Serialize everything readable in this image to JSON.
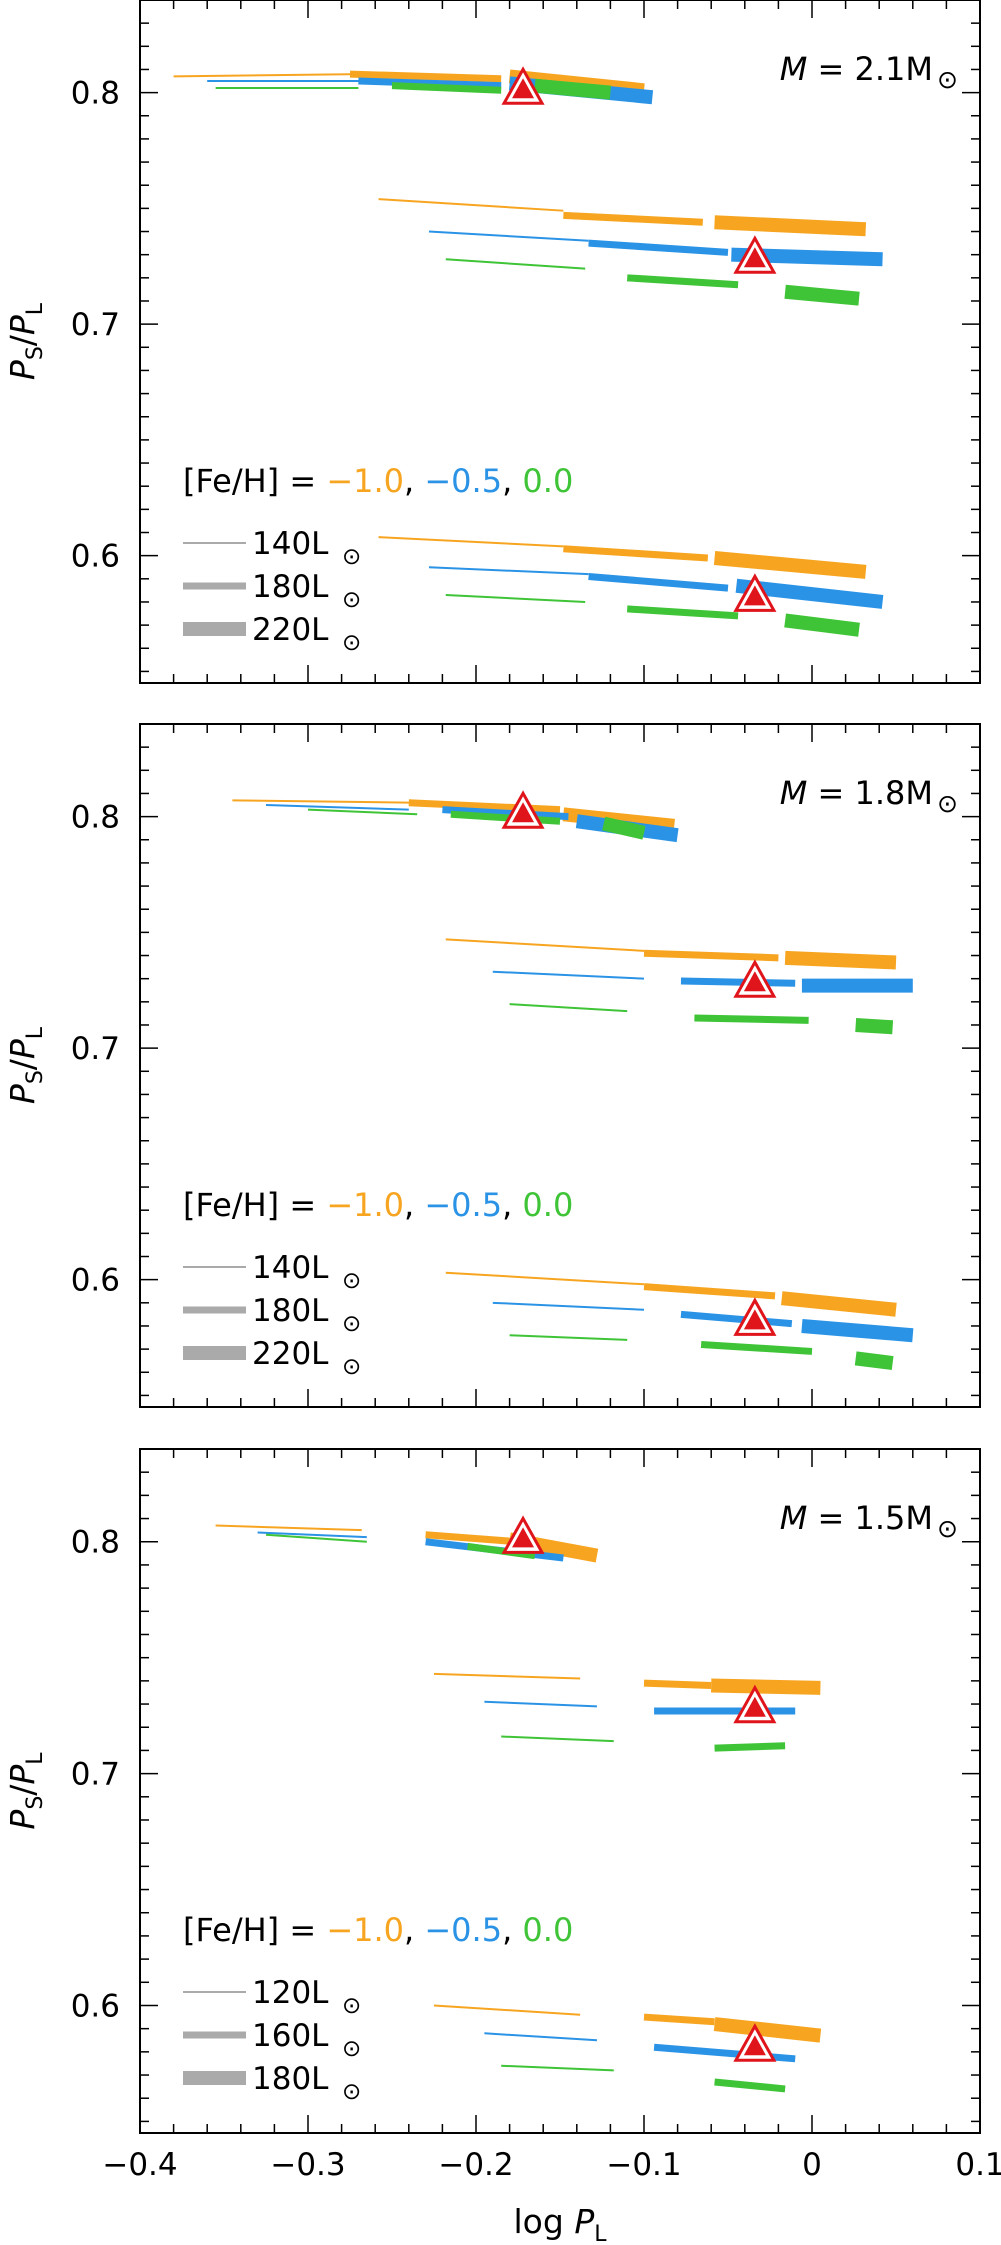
{
  "colors": {
    "metal_poor": "#f7a520",
    "metal_mid": "#2b93e6",
    "metal_solar": "#3fc437",
    "observed_fill": "#e0141b",
    "observed_edge": "#e0141b",
    "legend_gray": "#aaaaaa",
    "axis": "#000000"
  },
  "x_axis": {
    "label_prefix": "log ",
    "label_var": "P",
    "label_sub": "L",
    "ticks": [
      -0.4,
      -0.3,
      -0.2,
      -0.1,
      0,
      0.1
    ],
    "tick_labels": [
      "−0.4",
      "−0.3",
      "−0.2",
      "−0.1",
      "0",
      "0.1"
    ]
  },
  "y_axis": {
    "label_num": "P",
    "label_num_sub": "S",
    "label_den": "P",
    "label_den_sub": "L",
    "ticks": [
      0.6,
      0.7,
      0.8
    ],
    "tick_labels": [
      "0.6",
      "0.7",
      "0.8"
    ]
  },
  "legend_metallicity": {
    "prefix": "[Fe/H] = ",
    "values": [
      "−1.0",
      "−0.5",
      "0.0"
    ],
    "separators": [
      ", ",
      ", "
    ]
  },
  "chart_data": [
    {
      "type": "line",
      "panel": "top",
      "title_prefix": "M",
      "title_value": " = 2.1M",
      "title_symbol": "⊙",
      "xlim": [
        -0.4,
        0.1
      ],
      "ylim": [
        0.545,
        0.84
      ],
      "legend_luminosities": [
        "140L",
        "180L",
        "220L"
      ],
      "legend_symbol": "⊙",
      "observed_points": [
        {
          "x": -0.172,
          "y": 0.801
        },
        {
          "x": -0.034,
          "y": 0.728
        },
        {
          "x": -0.034,
          "y": 0.582
        }
      ],
      "series": [
        {
          "metal": "metal_poor",
          "lum": 1,
          "x": [
            -0.38,
            -0.27
          ],
          "y": [
            0.807,
            0.808
          ]
        },
        {
          "metal": "metal_poor",
          "lum": 2,
          "x": [
            -0.275,
            -0.185
          ],
          "y": [
            0.808,
            0.806
          ]
        },
        {
          "metal": "metal_poor",
          "lum": 3,
          "x": [
            -0.18,
            -0.1
          ],
          "y": [
            0.807,
            0.801
          ]
        },
        {
          "metal": "metal_mid",
          "lum": 1,
          "x": [
            -0.36,
            -0.265
          ],
          "y": [
            0.805,
            0.805
          ]
        },
        {
          "metal": "metal_mid",
          "lum": 2,
          "x": [
            -0.27,
            -0.185
          ],
          "y": [
            0.805,
            0.803
          ]
        },
        {
          "metal": "metal_mid",
          "lum": 3,
          "x": [
            -0.18,
            -0.095
          ],
          "y": [
            0.804,
            0.798
          ]
        },
        {
          "metal": "metal_solar",
          "lum": 1,
          "x": [
            -0.355,
            -0.27
          ],
          "y": [
            0.802,
            0.802
          ]
        },
        {
          "metal": "metal_solar",
          "lum": 2,
          "x": [
            -0.25,
            -0.185
          ],
          "y": [
            0.803,
            0.801
          ]
        },
        {
          "metal": "metal_solar",
          "lum": 3,
          "x": [
            -0.165,
            -0.12
          ],
          "y": [
            0.803,
            0.8
          ]
        },
        {
          "metal": "metal_poor",
          "lum": 1,
          "x": [
            -0.258,
            -0.148
          ],
          "y": [
            0.754,
            0.749
          ]
        },
        {
          "metal": "metal_poor",
          "lum": 2,
          "x": [
            -0.148,
            -0.065
          ],
          "y": [
            0.747,
            0.744
          ]
        },
        {
          "metal": "metal_poor",
          "lum": 3,
          "x": [
            -0.058,
            0.032
          ],
          "y": [
            0.744,
            0.741
          ]
        },
        {
          "metal": "metal_mid",
          "lum": 1,
          "x": [
            -0.228,
            -0.133
          ],
          "y": [
            0.74,
            0.736
          ]
        },
        {
          "metal": "metal_mid",
          "lum": 2,
          "x": [
            -0.133,
            -0.05
          ],
          "y": [
            0.735,
            0.731
          ]
        },
        {
          "metal": "metal_mid",
          "lum": 3,
          "x": [
            -0.048,
            0.042
          ],
          "y": [
            0.73,
            0.728
          ]
        },
        {
          "metal": "metal_solar",
          "lum": 1,
          "x": [
            -0.218,
            -0.135
          ],
          "y": [
            0.728,
            0.724
          ]
        },
        {
          "metal": "metal_solar",
          "lum": 2,
          "x": [
            -0.11,
            -0.044
          ],
          "y": [
            0.72,
            0.717
          ]
        },
        {
          "metal": "metal_solar",
          "lum": 3,
          "x": [
            -0.016,
            0.028
          ],
          "y": [
            0.714,
            0.711
          ]
        },
        {
          "metal": "metal_poor",
          "lum": 1,
          "x": [
            -0.258,
            -0.148
          ],
          "y": [
            0.608,
            0.604
          ]
        },
        {
          "metal": "metal_poor",
          "lum": 2,
          "x": [
            -0.148,
            -0.062
          ],
          "y": [
            0.603,
            0.599
          ]
        },
        {
          "metal": "metal_poor",
          "lum": 3,
          "x": [
            -0.058,
            0.032
          ],
          "y": [
            0.599,
            0.593
          ]
        },
        {
          "metal": "metal_mid",
          "lum": 1,
          "x": [
            -0.228,
            -0.133
          ],
          "y": [
            0.595,
            0.592
          ]
        },
        {
          "metal": "metal_mid",
          "lum": 2,
          "x": [
            -0.133,
            -0.05
          ],
          "y": [
            0.591,
            0.586
          ]
        },
        {
          "metal": "metal_mid",
          "lum": 3,
          "x": [
            -0.045,
            0.042
          ],
          "y": [
            0.587,
            0.58
          ]
        },
        {
          "metal": "metal_solar",
          "lum": 1,
          "x": [
            -0.218,
            -0.135
          ],
          "y": [
            0.583,
            0.58
          ]
        },
        {
          "metal": "metal_solar",
          "lum": 2,
          "x": [
            -0.11,
            -0.044
          ],
          "y": [
            0.577,
            0.574
          ]
        },
        {
          "metal": "metal_solar",
          "lum": 3,
          "x": [
            -0.016,
            0.028
          ],
          "y": [
            0.572,
            0.568
          ]
        }
      ]
    },
    {
      "type": "line",
      "panel": "middle",
      "title_prefix": "M",
      "title_value": " = 1.8M",
      "title_symbol": "⊙",
      "xlim": [
        -0.4,
        0.1
      ],
      "ylim": [
        0.545,
        0.84
      ],
      "legend_luminosities": [
        "140L",
        "180L",
        "220L"
      ],
      "legend_symbol": "⊙",
      "observed_points": [
        {
          "x": -0.172,
          "y": 0.801
        },
        {
          "x": -0.034,
          "y": 0.728
        },
        {
          "x": -0.034,
          "y": 0.582
        }
      ],
      "series": [
        {
          "metal": "metal_poor",
          "lum": 1,
          "x": [
            -0.345,
            -0.235
          ],
          "y": [
            0.807,
            0.806
          ]
        },
        {
          "metal": "metal_poor",
          "lum": 2,
          "x": [
            -0.24,
            -0.15
          ],
          "y": [
            0.806,
            0.803
          ]
        },
        {
          "metal": "metal_poor",
          "lum": 3,
          "x": [
            -0.148,
            -0.082
          ],
          "y": [
            0.801,
            0.796
          ]
        },
        {
          "metal": "metal_mid",
          "lum": 1,
          "x": [
            -0.325,
            -0.24
          ],
          "y": [
            0.805,
            0.803
          ]
        },
        {
          "metal": "metal_mid",
          "lum": 2,
          "x": [
            -0.22,
            -0.145
          ],
          "y": [
            0.803,
            0.8
          ]
        },
        {
          "metal": "metal_mid",
          "lum": 3,
          "x": [
            -0.14,
            -0.08
          ],
          "y": [
            0.798,
            0.792
          ]
        },
        {
          "metal": "metal_solar",
          "lum": 1,
          "x": [
            -0.3,
            -0.235
          ],
          "y": [
            0.803,
            0.801
          ]
        },
        {
          "metal": "metal_solar",
          "lum": 2,
          "x": [
            -0.215,
            -0.15
          ],
          "y": [
            0.801,
            0.798
          ]
        },
        {
          "metal": "metal_solar",
          "lum": 3,
          "x": [
            -0.124,
            -0.1
          ],
          "y": [
            0.797,
            0.793
          ]
        },
        {
          "metal": "metal_poor",
          "lum": 1,
          "x": [
            -0.218,
            -0.1
          ],
          "y": [
            0.747,
            0.742
          ]
        },
        {
          "metal": "metal_poor",
          "lum": 2,
          "x": [
            -0.1,
            -0.02
          ],
          "y": [
            0.741,
            0.739
          ]
        },
        {
          "metal": "metal_poor",
          "lum": 3,
          "x": [
            -0.016,
            0.05
          ],
          "y": [
            0.739,
            0.737
          ]
        },
        {
          "metal": "metal_mid",
          "lum": 1,
          "x": [
            -0.19,
            -0.1
          ],
          "y": [
            0.733,
            0.73
          ]
        },
        {
          "metal": "metal_mid",
          "lum": 2,
          "x": [
            -0.078,
            -0.01
          ],
          "y": [
            0.729,
            0.728
          ]
        },
        {
          "metal": "metal_mid",
          "lum": 3,
          "x": [
            -0.006,
            0.06
          ],
          "y": [
            0.727,
            0.727
          ]
        },
        {
          "metal": "metal_solar",
          "lum": 1,
          "x": [
            -0.18,
            -0.11
          ],
          "y": [
            0.719,
            0.716
          ]
        },
        {
          "metal": "metal_solar",
          "lum": 2,
          "x": [
            -0.07,
            -0.002
          ],
          "y": [
            0.713,
            0.712
          ]
        },
        {
          "metal": "metal_solar",
          "lum": 3,
          "x": [
            0.026,
            0.048
          ],
          "y": [
            0.71,
            0.709
          ]
        },
        {
          "metal": "metal_poor",
          "lum": 1,
          "x": [
            -0.218,
            -0.1
          ],
          "y": [
            0.603,
            0.598
          ]
        },
        {
          "metal": "metal_poor",
          "lum": 2,
          "x": [
            -0.1,
            -0.022
          ],
          "y": [
            0.597,
            0.593
          ]
        },
        {
          "metal": "metal_poor",
          "lum": 3,
          "x": [
            -0.018,
            0.05
          ],
          "y": [
            0.592,
            0.587
          ]
        },
        {
          "metal": "metal_mid",
          "lum": 1,
          "x": [
            -0.19,
            -0.1
          ],
          "y": [
            0.59,
            0.587
          ]
        },
        {
          "metal": "metal_mid",
          "lum": 2,
          "x": [
            -0.078,
            -0.012
          ],
          "y": [
            0.585,
            0.581
          ]
        },
        {
          "metal": "metal_mid",
          "lum": 3,
          "x": [
            -0.006,
            0.06
          ],
          "y": [
            0.58,
            0.576
          ]
        },
        {
          "metal": "metal_solar",
          "lum": 1,
          "x": [
            -0.18,
            -0.11
          ],
          "y": [
            0.576,
            0.574
          ]
        },
        {
          "metal": "metal_solar",
          "lum": 2,
          "x": [
            -0.066,
            0.0
          ],
          "y": [
            0.572,
            0.569
          ]
        },
        {
          "metal": "metal_solar",
          "lum": 3,
          "x": [
            0.026,
            0.048
          ],
          "y": [
            0.566,
            0.564
          ]
        }
      ]
    },
    {
      "type": "line",
      "panel": "bottom",
      "title_prefix": "M",
      "title_value": " = 1.5M",
      "title_symbol": "⊙",
      "xlim": [
        -0.4,
        0.1
      ],
      "ylim": [
        0.545,
        0.84
      ],
      "legend_luminosities": [
        "120L",
        "160L",
        "180L"
      ],
      "legend_symbol": "⊙",
      "observed_points": [
        {
          "x": -0.172,
          "y": 0.801
        },
        {
          "x": -0.034,
          "y": 0.728
        },
        {
          "x": -0.034,
          "y": 0.582
        }
      ],
      "series": [
        {
          "metal": "metal_poor",
          "lum": 1,
          "x": [
            -0.355,
            -0.268
          ],
          "y": [
            0.807,
            0.805
          ]
        },
        {
          "metal": "metal_poor",
          "lum": 2,
          "x": [
            -0.23,
            -0.175
          ],
          "y": [
            0.803,
            0.8
          ]
        },
        {
          "metal": "metal_poor",
          "lum": 3,
          "x": [
            -0.18,
            -0.128
          ],
          "y": [
            0.801,
            0.794
          ]
        },
        {
          "metal": "metal_mid",
          "lum": 1,
          "x": [
            -0.33,
            -0.265
          ],
          "y": [
            0.804,
            0.802
          ]
        },
        {
          "metal": "metal_mid",
          "lum": 2,
          "x": [
            -0.23,
            -0.148
          ],
          "y": [
            0.8,
            0.793
          ]
        },
        {
          "metal": "metal_solar",
          "lum": 1,
          "x": [
            -0.325,
            -0.265
          ],
          "y": [
            0.803,
            0.8
          ]
        },
        {
          "metal": "metal_solar",
          "lum": 2,
          "x": [
            -0.205,
            -0.165
          ],
          "y": [
            0.798,
            0.794
          ]
        },
        {
          "metal": "metal_poor",
          "lum": 1,
          "x": [
            -0.225,
            -0.138
          ],
          "y": [
            0.743,
            0.741
          ]
        },
        {
          "metal": "metal_poor",
          "lum": 2,
          "x": [
            -0.1,
            -0.06
          ],
          "y": [
            0.739,
            0.738
          ]
        },
        {
          "metal": "metal_poor",
          "lum": 3,
          "x": [
            -0.06,
            0.005
          ],
          "y": [
            0.738,
            0.737
          ]
        },
        {
          "metal": "metal_mid",
          "lum": 1,
          "x": [
            -0.195,
            -0.128
          ],
          "y": [
            0.731,
            0.729
          ]
        },
        {
          "metal": "metal_mid",
          "lum": 2,
          "x": [
            -0.094,
            -0.01
          ],
          "y": [
            0.727,
            0.727
          ]
        },
        {
          "metal": "metal_solar",
          "lum": 1,
          "x": [
            -0.185,
            -0.118
          ],
          "y": [
            0.716,
            0.714
          ]
        },
        {
          "metal": "metal_solar",
          "lum": 2,
          "x": [
            -0.058,
            -0.016
          ],
          "y": [
            0.711,
            0.712
          ]
        },
        {
          "metal": "metal_poor",
          "lum": 1,
          "x": [
            -0.225,
            -0.138
          ],
          "y": [
            0.6,
            0.596
          ]
        },
        {
          "metal": "metal_poor",
          "lum": 2,
          "x": [
            -0.1,
            -0.058
          ],
          "y": [
            0.595,
            0.593
          ]
        },
        {
          "metal": "metal_poor",
          "lum": 3,
          "x": [
            -0.058,
            0.005
          ],
          "y": [
            0.592,
            0.587
          ]
        },
        {
          "metal": "metal_mid",
          "lum": 1,
          "x": [
            -0.195,
            -0.128
          ],
          "y": [
            0.588,
            0.585
          ]
        },
        {
          "metal": "metal_mid",
          "lum": 2,
          "x": [
            -0.094,
            -0.01
          ],
          "y": [
            0.582,
            0.577
          ]
        },
        {
          "metal": "metal_solar",
          "lum": 1,
          "x": [
            -0.185,
            -0.118
          ],
          "y": [
            0.574,
            0.572
          ]
        },
        {
          "metal": "metal_solar",
          "lum": 2,
          "x": [
            -0.058,
            -0.016
          ],
          "y": [
            0.567,
            0.564
          ]
        }
      ]
    }
  ]
}
